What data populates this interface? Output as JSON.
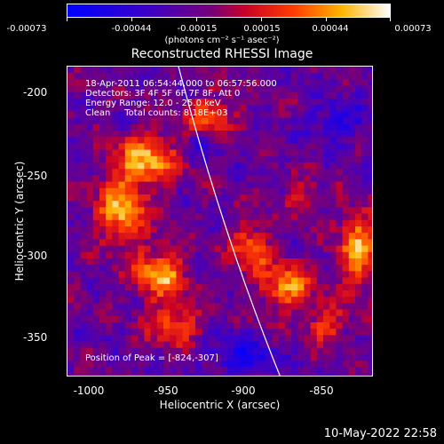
{
  "colorbar": {
    "ticks": [
      "-0.00073",
      "-0.00044",
      "-0.00015",
      "0.00015",
      "0.00044",
      "0.00073"
    ],
    "unit": "(photons cm⁻² s⁻¹ asec⁻²)"
  },
  "title": "Reconstructed RHESSI Image",
  "info": {
    "line1": "18-Apr-2011 06:54:44.000 to 06:57:56.000",
    "line2": "Detectors: 3F 4F 5F 6F 7F 8F, Att 0",
    "line3": "Energy Range: 12.0 - 25.0 keV",
    "line4": "Clean     Total counts: 8.18E+03",
    "peak": "Position of Peak = [-824,-307]"
  },
  "axes": {
    "xlabel": "Heliocentric X (arcsec)",
    "ylabel": "Heliocentric Y (arcsec)",
    "xticks": [
      "-1000",
      "-950",
      "-900",
      "-850"
    ],
    "yticks": [
      "-200",
      "-250",
      "-300",
      "-350"
    ]
  },
  "datestamp": "10-May-2022 22:58"
}
